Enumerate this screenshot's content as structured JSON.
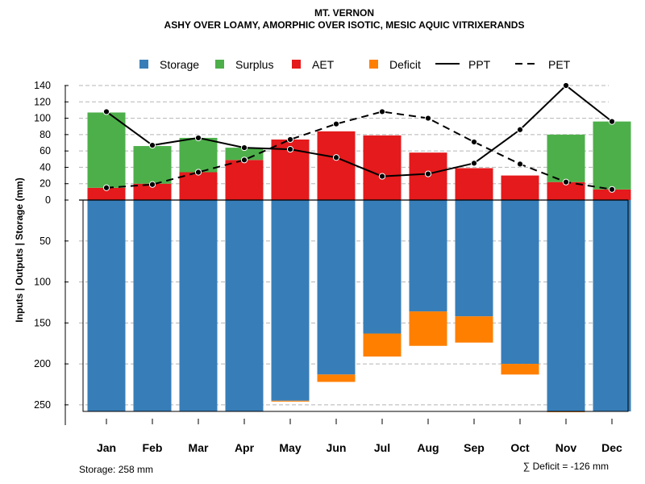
{
  "chart_data": {
    "type": "bar",
    "title": "MT. VERNON",
    "subtitle": "ASHY OVER LOAMY, AMORPHIC OVER ISOTIC, MESIC AQUIC VITRIXERANDS",
    "ylabel": "Inputs | Outputs | Storage     (mm)",
    "categories": [
      "Jan",
      "Feb",
      "Mar",
      "Apr",
      "May",
      "Jun",
      "Jul",
      "Aug",
      "Sep",
      "Oct",
      "Nov",
      "Dec"
    ],
    "upper_ticks": [
      "0",
      "20",
      "40",
      "60",
      "80",
      "100",
      "120",
      "140"
    ],
    "lower_ticks": [
      "50",
      "100",
      "150",
      "200",
      "250"
    ],
    "upper_ylim": [
      0,
      140
    ],
    "lower_ylim": [
      0,
      258
    ],
    "storage_capacity": 258,
    "series": [
      {
        "name": "Storage",
        "color": "#377EB8",
        "values": [
          258,
          258,
          258,
          258,
          245,
          213,
          163,
          136,
          142,
          200,
          258,
          258
        ]
      },
      {
        "name": "Surplus",
        "color": "#4DAF4A",
        "values": [
          92,
          46,
          42,
          15,
          0,
          0,
          0,
          0,
          0,
          0,
          58,
          83
        ]
      },
      {
        "name": "AET",
        "color": "#E41A1C",
        "values": [
          15,
          20,
          34,
          49,
          74,
          84,
          79,
          58,
          39,
          30,
          22,
          13
        ]
      },
      {
        "name": "Deficit",
        "color": "#FF7F00",
        "values": [
          0,
          0,
          0,
          0,
          1,
          9,
          28,
          42,
          32,
          13,
          1,
          0
        ]
      },
      {
        "name": "PPT",
        "style": "solid",
        "values": [
          108,
          67,
          76,
          64,
          62,
          52,
          29,
          32,
          45,
          86,
          140,
          96
        ]
      },
      {
        "name": "PET",
        "style": "dashed",
        "values": [
          15,
          19,
          34,
          49,
          74,
          93,
          108,
          100,
          71,
          44,
          22,
          13
        ]
      }
    ],
    "legend": [
      "Storage",
      "Surplus",
      "AET",
      "Deficit",
      "PPT",
      "PET"
    ],
    "grid": true,
    "footer_left": "Storage: 258 mm",
    "footer_right": "∑ Deficit = -126 mm"
  }
}
